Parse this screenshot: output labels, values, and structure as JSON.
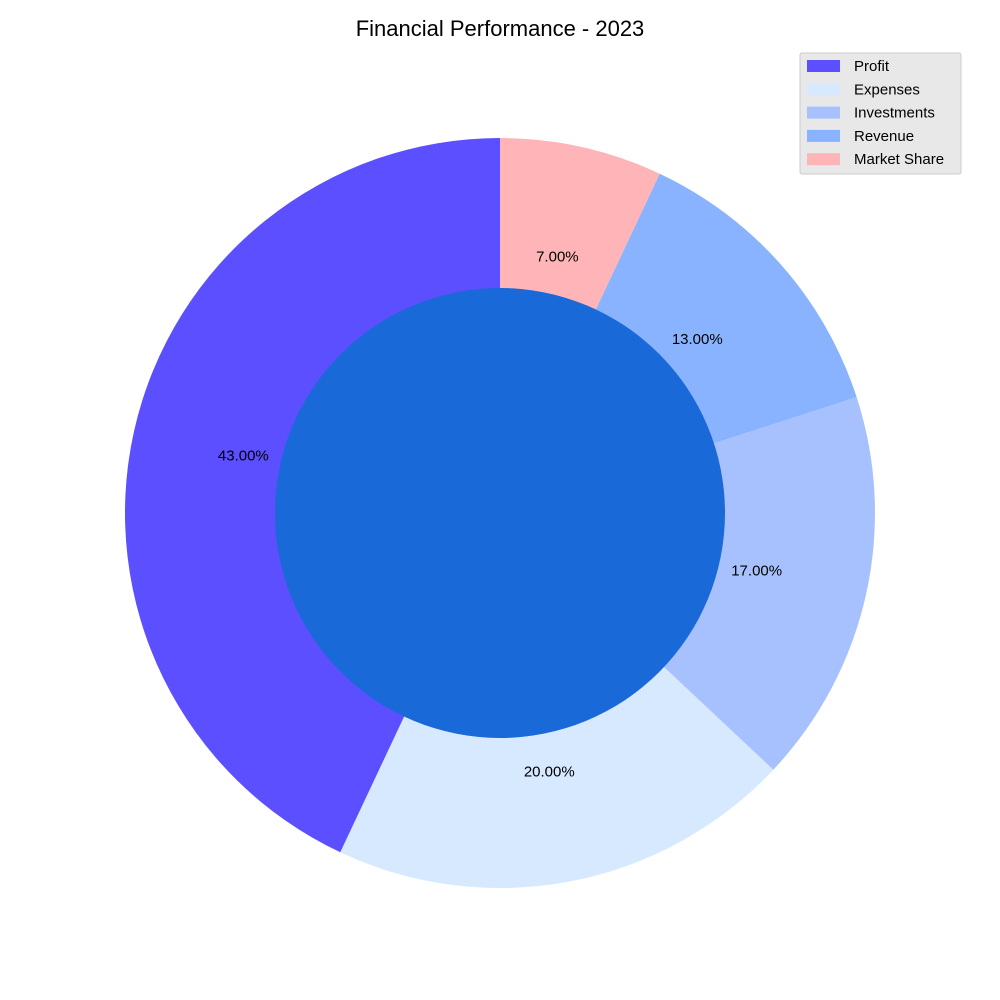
{
  "chart_data": {
    "type": "pie",
    "variant": "donut",
    "title": "Financial Performance - 2023",
    "categories": [
      "Profit",
      "Expenses",
      "Investments",
      "Revenue",
      "Market Share"
    ],
    "values": [
      43,
      20,
      17,
      13,
      7
    ],
    "value_labels": [
      "43.00%",
      "20.00%",
      "17.00%",
      "13.00%",
      "7.00%"
    ],
    "colors": [
      "#5b4fff",
      "#d6e9ff",
      "#a7c1ff",
      "#89b3ff",
      "#ffb4b7"
    ],
    "center_color": "#1a69d9",
    "start_angle_deg": 90,
    "direction": "counterclockwise",
    "legend": {
      "position": "top-right",
      "background": "#e8e8e8",
      "items": [
        "Profit",
        "Expenses",
        "Investments",
        "Revenue",
        "Market Share"
      ]
    }
  }
}
